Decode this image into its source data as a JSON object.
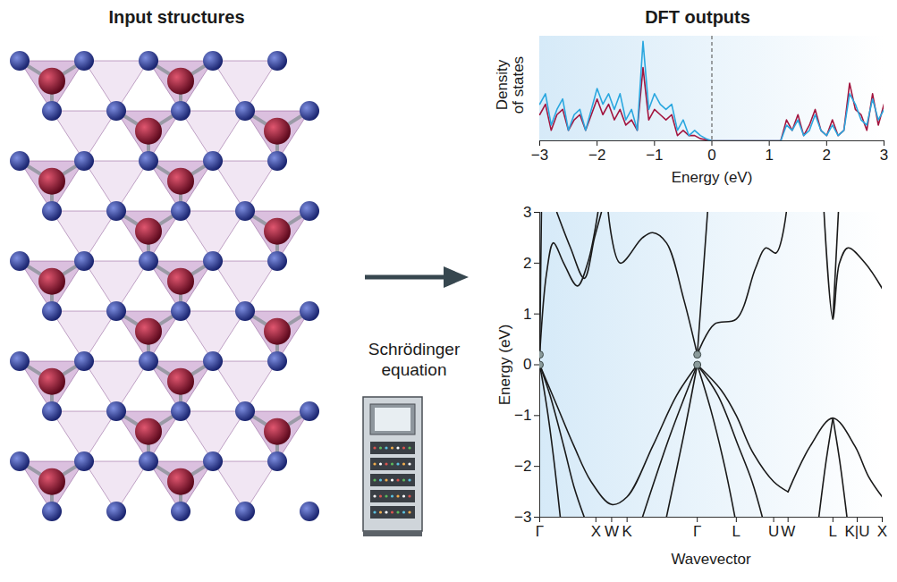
{
  "labels": {
    "left_title": "Input structures",
    "right_title": "DFT outputs",
    "process": "Schrödinger equation"
  },
  "chart_data": [
    {
      "type": "line",
      "x_label": "Energy (eV)",
      "y_label": "Density of states",
      "x": [
        -3.0,
        -2.9,
        -2.8,
        -2.7,
        -2.6,
        -2.5,
        -2.4,
        -2.3,
        -2.2,
        -2.1,
        -2.0,
        -1.9,
        -1.8,
        -1.7,
        -1.6,
        -1.5,
        -1.4,
        -1.3,
        -1.2,
        -1.1,
        -1.0,
        -0.9,
        -0.8,
        -0.7,
        -0.6,
        -0.5,
        -0.4,
        -0.3,
        -0.2,
        -0.1,
        0.0,
        0.1,
        0.2,
        0.3,
        0.4,
        0.5,
        0.6,
        0.7,
        0.8,
        0.9,
        1.0,
        1.1,
        1.2,
        1.3,
        1.4,
        1.5,
        1.6,
        1.7,
        1.8,
        1.9,
        2.0,
        2.1,
        2.2,
        2.3,
        2.4,
        2.5,
        2.6,
        2.7,
        2.8,
        2.9,
        3.0
      ],
      "series": [
        {
          "color": "#a3153f",
          "values": [
            0.25,
            0.35,
            0.1,
            0.25,
            0.3,
            0.1,
            0.2,
            0.25,
            0.1,
            0.25,
            0.4,
            0.25,
            0.35,
            0.2,
            0.3,
            0.15,
            0.2,
            0.1,
            0.7,
            0.2,
            0.3,
            0.25,
            0.2,
            0.25,
            0.05,
            0.1,
            0.05,
            0.05,
            0.02,
            0.01,
            0,
            0,
            0,
            0,
            0,
            0,
            0,
            0,
            0,
            0,
            0,
            0,
            0,
            0.2,
            0.1,
            0.25,
            0.05,
            0.15,
            0.3,
            0.1,
            0.05,
            0.2,
            0.05,
            0.1,
            0.55,
            0.3,
            0.25,
            0.1,
            0.45,
            0.15,
            0.35
          ]
        },
        {
          "color": "#2aa7df",
          "values": [
            0.35,
            0.45,
            0.15,
            0.3,
            0.4,
            0.1,
            0.25,
            0.3,
            0.1,
            0.3,
            0.5,
            0.35,
            0.45,
            0.3,
            0.45,
            0.2,
            0.3,
            0.1,
            0.95,
            0.3,
            0.45,
            0.35,
            0.3,
            0.35,
            0.1,
            0.2,
            0.05,
            0.1,
            0.05,
            0.02,
            0,
            0,
            0,
            0,
            0,
            0,
            0,
            0,
            0,
            0,
            0,
            0,
            0,
            0.15,
            0.1,
            0.2,
            0.05,
            0.1,
            0.25,
            0.1,
            0.05,
            0.15,
            0.05,
            0.1,
            0.45,
            0.35,
            0.2,
            0.15,
            0.4,
            0.2,
            0.3
          ]
        }
      ],
      "xlim": [
        -3,
        3
      ],
      "xticks": [
        -3,
        -2,
        -1,
        0,
        1,
        2,
        3
      ],
      "ylim": [
        0,
        1
      ],
      "tick_labels": "x",
      "reference_line": {
        "value": 0,
        "line_style": "dashed"
      }
    },
    {
      "type": "line",
      "x_label": "Wavevector",
      "y_label": "Energy (eV)",
      "color": "#1a1a1a",
      "xlim": [
        0,
        1
      ],
      "xticks": [
        {
          "value": 0,
          "label": "Γ"
        },
        {
          "value": 0.164,
          "label": "X"
        },
        {
          "value": 0.21,
          "label": "W"
        },
        {
          "value": 0.255,
          "label": "K"
        },
        {
          "value": 0.46,
          "label": "Γ"
        },
        {
          "value": 0.574,
          "label": "L"
        },
        {
          "value": 0.683,
          "label": "U"
        },
        {
          "value": 0.725,
          "label": "W"
        },
        {
          "value": 0.856,
          "label": "L"
        },
        {
          "value": 0.927,
          "label": "K|U"
        },
        {
          "value": 1,
          "label": "X"
        }
      ],
      "ylim": [
        -3,
        3
      ],
      "yticks": [
        -3,
        -2,
        -1,
        0,
        1,
        2,
        3
      ],
      "series": [
        {
          "x": [
            0,
            0.02,
            0.04,
            0.06
          ],
          "values": [
            0,
            -0.8,
            -1.8,
            -3
          ]
        },
        {
          "x": [
            0,
            0.03,
            0.07,
            0.1,
            0.13
          ],
          "values": [
            0,
            -0.6,
            -1.6,
            -2.4,
            -3
          ]
        },
        {
          "x": [
            0,
            0.05,
            0.1,
            0.15,
            0.21,
            0.255,
            0.33,
            0.4,
            0.46
          ],
          "values": [
            0,
            -0.8,
            -1.6,
            -2.3,
            -2.75,
            -2.6,
            -1.6,
            -0.6,
            0
          ]
        },
        {
          "x": [
            0.3,
            0.38,
            0.46
          ],
          "values": [
            -3,
            -1.4,
            0
          ]
        },
        {
          "x": [
            0.37,
            0.42,
            0.46
          ],
          "values": [
            -3,
            -1.4,
            0
          ]
        },
        {
          "x": [
            0.46,
            0.5,
            0.54,
            0.57
          ],
          "values": [
            0,
            -0.9,
            -2,
            -3
          ]
        },
        {
          "x": [
            0.46,
            0.52,
            0.58,
            0.62,
            0.65
          ],
          "values": [
            0,
            -0.6,
            -1.6,
            -2.3,
            -3
          ]
        },
        {
          "x": [
            0.46,
            0.53,
            0.574,
            0.62,
            0.683,
            0.725
          ],
          "values": [
            0,
            -0.5,
            -1.0,
            -1.7,
            -2.3,
            -2.5
          ]
        },
        {
          "x": [
            0.725,
            0.79,
            0.856,
            0.92,
            0.96,
            1
          ],
          "values": [
            -2.5,
            -1.6,
            -1.05,
            -1.6,
            -2.2,
            -2.6
          ]
        },
        {
          "x": [
            0.815,
            0.836,
            0.856
          ],
          "values": [
            -3,
            -1.9,
            -1.05
          ]
        },
        {
          "x": [
            0.856,
            0.876,
            0.897
          ],
          "values": [
            -1.05,
            -1.9,
            -3
          ]
        },
        {
          "x": [
            0,
            0.005
          ],
          "values": [
            0.2,
            3
          ]
        },
        {
          "x": [
            0,
            0.02,
            0.04,
            0.07,
            0.11,
            0.14,
            0.17
          ],
          "values": [
            0.2,
            1.8,
            2.4,
            2.0,
            1.55,
            2.0,
            3
          ]
        },
        {
          "x": [
            0.05,
            0.09,
            0.13,
            0.16,
            0.18
          ],
          "values": [
            3,
            2.3,
            1.7,
            2.5,
            3
          ]
        },
        {
          "x": [
            0.2,
            0.235,
            0.3,
            0.33,
            0.37,
            0.42,
            0.46
          ],
          "values": [
            3,
            2.0,
            2.5,
            2.6,
            2.4,
            1.3,
            0.2
          ]
        },
        {
          "x": [
            0.46,
            0.475,
            0.49
          ],
          "values": [
            0.2,
            1.6,
            3
          ]
        },
        {
          "x": [
            0.46,
            0.51,
            0.574,
            0.63,
            0.66,
            0.69,
            0.72
          ],
          "values": [
            0.2,
            0.8,
            0.9,
            1.9,
            2.3,
            2.2,
            3
          ]
        },
        {
          "x": [
            0.83,
            0.856,
            0.875,
            0.9,
            0.95,
            1
          ],
          "values": [
            3,
            0.9,
            2.0,
            2.3,
            2.0,
            1.5
          ]
        },
        {
          "x": [
            0.856,
            0.872
          ],
          "values": [
            0.9,
            3
          ]
        }
      ],
      "highlighted_points": {
        "x": [
          0,
          0,
          0.46,
          0.46
        ],
        "values": [
          0.2,
          0,
          0.2,
          0
        ],
        "color": "#8a9a9a"
      }
    }
  ]
}
